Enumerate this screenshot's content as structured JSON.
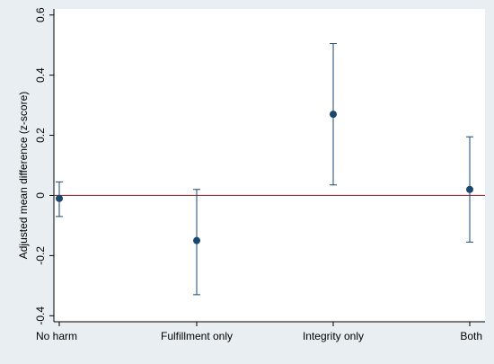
{
  "chart_data": {
    "type": "scatter",
    "title": "",
    "xlabel": "",
    "ylabel": "Adjusted mean difference (z-score)",
    "categories": [
      "No harm",
      "Fulfillment only",
      "Integrity only",
      "Both"
    ],
    "estimates": [
      -0.01,
      -0.15,
      0.27,
      0.02
    ],
    "ci_lower": [
      -0.07,
      -0.33,
      0.035,
      -0.155
    ],
    "ci_upper": [
      0.045,
      0.02,
      0.505,
      0.195
    ],
    "yticks": [
      -0.4,
      -0.2,
      0,
      0.2,
      0.4,
      0.6
    ],
    "ytick_labels": [
      "-0.4",
      "-0.2",
      "0",
      "0.2",
      "0.4",
      "0.6"
    ],
    "ylim": [
      -0.42,
      0.62
    ],
    "reference_line": 0,
    "grid": false,
    "colors": {
      "background": "#e8eef2",
      "plot_area": "#ffffff",
      "marker": "#1a476f",
      "errorbar": "#1a476f",
      "reference_line": "#90353b"
    }
  }
}
